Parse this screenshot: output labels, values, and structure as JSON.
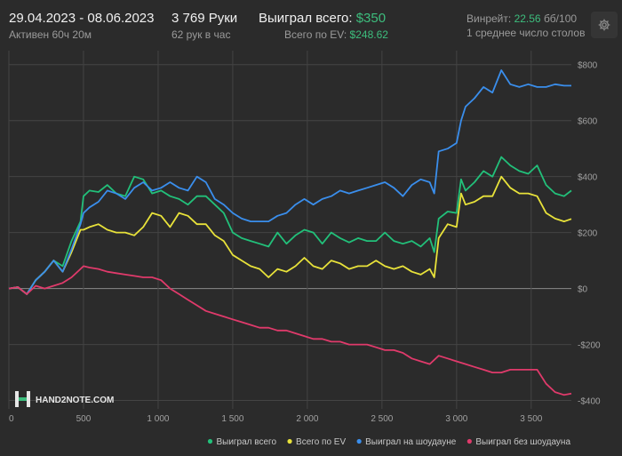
{
  "header": {
    "date_range": "29.04.2023 - 08.06.2023",
    "active": "Активен 60ч 20м",
    "hands": "3 769 Руки",
    "hands_per_hour": "62 рук в час",
    "won_total_label": "Выиграл всего:",
    "won_total_value": "$350",
    "ev_total_label": "Всего по EV:",
    "ev_total_value": "$248.62",
    "winrate_label": "Винрейт:",
    "winrate_value": "22.56",
    "winrate_unit": "бб/100",
    "tables": "1 среднее число столов"
  },
  "logo": {
    "text": "HAND2NOTE.COM"
  },
  "chart_data": {
    "type": "line",
    "xlim": [
      0,
      3769
    ],
    "ylim": [
      -430,
      850
    ],
    "x_ticks": [
      0,
      500,
      1000,
      1500,
      2000,
      2500,
      3000,
      3500
    ],
    "x_tick_labels": [
      "0",
      "500",
      "1 000",
      "1 500",
      "2 000",
      "2 500",
      "3 000",
      "3 500"
    ],
    "y_ticks": [
      800,
      600,
      400,
      200,
      0,
      -200,
      -400
    ],
    "y_tick_labels": [
      "$800",
      "$600",
      "$400",
      "$200",
      "$0",
      "-$200",
      "-$400"
    ],
    "grid": true,
    "legend_position": "bottom-right",
    "colors": {
      "background": "#2b2b2b",
      "grid": "#444444",
      "zero_line": "#8a8a8a",
      "axis_text": "#a0a0a0",
      "accent_green": "#3dbd7d"
    },
    "series": [
      {
        "name": "Выиграл всего",
        "color": "#22c07a",
        "points": [
          [
            0,
            0
          ],
          [
            60,
            5
          ],
          [
            120,
            -20
          ],
          [
            180,
            30
          ],
          [
            240,
            60
          ],
          [
            300,
            100
          ],
          [
            360,
            80
          ],
          [
            420,
            170
          ],
          [
            480,
            240
          ],
          [
            500,
            330
          ],
          [
            540,
            350
          ],
          [
            600,
            345
          ],
          [
            660,
            370
          ],
          [
            720,
            340
          ],
          [
            780,
            330
          ],
          [
            840,
            400
          ],
          [
            900,
            390
          ],
          [
            960,
            340
          ],
          [
            1020,
            350
          ],
          [
            1080,
            330
          ],
          [
            1140,
            320
          ],
          [
            1200,
            300
          ],
          [
            1260,
            330
          ],
          [
            1320,
            330
          ],
          [
            1380,
            300
          ],
          [
            1440,
            270
          ],
          [
            1500,
            200
          ],
          [
            1560,
            180
          ],
          [
            1620,
            170
          ],
          [
            1680,
            160
          ],
          [
            1740,
            150
          ],
          [
            1800,
            200
          ],
          [
            1860,
            160
          ],
          [
            1920,
            190
          ],
          [
            1980,
            210
          ],
          [
            2040,
            200
          ],
          [
            2100,
            160
          ],
          [
            2160,
            200
          ],
          [
            2220,
            180
          ],
          [
            2280,
            165
          ],
          [
            2340,
            180
          ],
          [
            2400,
            170
          ],
          [
            2460,
            170
          ],
          [
            2520,
            200
          ],
          [
            2580,
            170
          ],
          [
            2640,
            160
          ],
          [
            2700,
            170
          ],
          [
            2760,
            150
          ],
          [
            2820,
            180
          ],
          [
            2850,
            130
          ],
          [
            2880,
            250
          ],
          [
            2940,
            275
          ],
          [
            3000,
            270
          ],
          [
            3030,
            390
          ],
          [
            3060,
            350
          ],
          [
            3120,
            380
          ],
          [
            3180,
            420
          ],
          [
            3240,
            400
          ],
          [
            3300,
            470
          ],
          [
            3360,
            440
          ],
          [
            3420,
            420
          ],
          [
            3480,
            410
          ],
          [
            3540,
            440
          ],
          [
            3600,
            370
          ],
          [
            3660,
            340
          ],
          [
            3720,
            330
          ],
          [
            3769,
            350
          ]
        ]
      },
      {
        "name": "Всего по EV",
        "color": "#e8e23a",
        "points": [
          [
            0,
            0
          ],
          [
            60,
            5
          ],
          [
            120,
            -20
          ],
          [
            180,
            30
          ],
          [
            240,
            60
          ],
          [
            300,
            100
          ],
          [
            360,
            60
          ],
          [
            420,
            130
          ],
          [
            480,
            210
          ],
          [
            500,
            210
          ],
          [
            540,
            220
          ],
          [
            600,
            230
          ],
          [
            660,
            210
          ],
          [
            720,
            200
          ],
          [
            780,
            200
          ],
          [
            840,
            190
          ],
          [
            900,
            220
          ],
          [
            960,
            270
          ],
          [
            1020,
            260
          ],
          [
            1080,
            220
          ],
          [
            1140,
            270
          ],
          [
            1200,
            260
          ],
          [
            1260,
            230
          ],
          [
            1320,
            230
          ],
          [
            1380,
            190
          ],
          [
            1440,
            170
          ],
          [
            1500,
            120
          ],
          [
            1560,
            100
          ],
          [
            1620,
            80
          ],
          [
            1680,
            70
          ],
          [
            1740,
            40
          ],
          [
            1800,
            70
          ],
          [
            1860,
            60
          ],
          [
            1920,
            80
          ],
          [
            1980,
            110
          ],
          [
            2040,
            80
          ],
          [
            2100,
            70
          ],
          [
            2160,
            100
          ],
          [
            2220,
            90
          ],
          [
            2280,
            70
          ],
          [
            2340,
            80
          ],
          [
            2400,
            80
          ],
          [
            2460,
            100
          ],
          [
            2520,
            80
          ],
          [
            2580,
            70
          ],
          [
            2640,
            80
          ],
          [
            2700,
            60
          ],
          [
            2760,
            50
          ],
          [
            2820,
            70
          ],
          [
            2850,
            40
          ],
          [
            2880,
            180
          ],
          [
            2940,
            230
          ],
          [
            3000,
            220
          ],
          [
            3030,
            340
          ],
          [
            3060,
            300
          ],
          [
            3120,
            310
          ],
          [
            3180,
            330
          ],
          [
            3240,
            330
          ],
          [
            3300,
            400
          ],
          [
            3360,
            360
          ],
          [
            3420,
            340
          ],
          [
            3480,
            340
          ],
          [
            3540,
            330
          ],
          [
            3600,
            270
          ],
          [
            3660,
            250
          ],
          [
            3720,
            240
          ],
          [
            3769,
            248.62
          ]
        ]
      },
      {
        "name": "Выиграл на шоудауне",
        "color": "#3a8eec",
        "points": [
          [
            0,
            0
          ],
          [
            60,
            5
          ],
          [
            120,
            -20
          ],
          [
            180,
            30
          ],
          [
            240,
            60
          ],
          [
            300,
            100
          ],
          [
            360,
            60
          ],
          [
            420,
            140
          ],
          [
            480,
            230
          ],
          [
            500,
            270
          ],
          [
            540,
            290
          ],
          [
            600,
            310
          ],
          [
            660,
            350
          ],
          [
            720,
            340
          ],
          [
            780,
            320
          ],
          [
            840,
            360
          ],
          [
            900,
            380
          ],
          [
            960,
            350
          ],
          [
            1020,
            360
          ],
          [
            1080,
            380
          ],
          [
            1140,
            360
          ],
          [
            1200,
            350
          ],
          [
            1260,
            400
          ],
          [
            1320,
            380
          ],
          [
            1380,
            320
          ],
          [
            1440,
            300
          ],
          [
            1500,
            270
          ],
          [
            1560,
            250
          ],
          [
            1620,
            240
          ],
          [
            1680,
            240
          ],
          [
            1740,
            240
          ],
          [
            1800,
            260
          ],
          [
            1860,
            270
          ],
          [
            1920,
            300
          ],
          [
            1980,
            320
          ],
          [
            2040,
            300
          ],
          [
            2100,
            320
          ],
          [
            2160,
            330
          ],
          [
            2220,
            350
          ],
          [
            2280,
            340
          ],
          [
            2340,
            350
          ],
          [
            2400,
            360
          ],
          [
            2460,
            370
          ],
          [
            2520,
            380
          ],
          [
            2580,
            360
          ],
          [
            2640,
            330
          ],
          [
            2700,
            370
          ],
          [
            2760,
            390
          ],
          [
            2820,
            380
          ],
          [
            2850,
            340
          ],
          [
            2880,
            490
          ],
          [
            2940,
            500
          ],
          [
            3000,
            520
          ],
          [
            3030,
            600
          ],
          [
            3060,
            650
          ],
          [
            3120,
            680
          ],
          [
            3180,
            720
          ],
          [
            3240,
            700
          ],
          [
            3300,
            780
          ],
          [
            3360,
            730
          ],
          [
            3420,
            720
          ],
          [
            3480,
            730
          ],
          [
            3540,
            720
          ],
          [
            3600,
            720
          ],
          [
            3660,
            730
          ],
          [
            3720,
            725
          ],
          [
            3769,
            725
          ]
        ]
      },
      {
        "name": "Выиграл без шоудауна",
        "color": "#e03a6b",
        "points": [
          [
            0,
            0
          ],
          [
            60,
            5
          ],
          [
            120,
            -20
          ],
          [
            180,
            10
          ],
          [
            240,
            0
          ],
          [
            300,
            10
          ],
          [
            360,
            20
          ],
          [
            420,
            40
          ],
          [
            480,
            70
          ],
          [
            500,
            80
          ],
          [
            540,
            75
          ],
          [
            600,
            70
          ],
          [
            660,
            60
          ],
          [
            720,
            55
          ],
          [
            780,
            50
          ],
          [
            840,
            45
          ],
          [
            900,
            40
          ],
          [
            960,
            40
          ],
          [
            1020,
            30
          ],
          [
            1080,
            0
          ],
          [
            1140,
            -20
          ],
          [
            1200,
            -40
          ],
          [
            1260,
            -60
          ],
          [
            1320,
            -80
          ],
          [
            1380,
            -90
          ],
          [
            1440,
            -100
          ],
          [
            1500,
            -110
          ],
          [
            1560,
            -120
          ],
          [
            1620,
            -130
          ],
          [
            1680,
            -140
          ],
          [
            1740,
            -140
          ],
          [
            1800,
            -150
          ],
          [
            1860,
            -150
          ],
          [
            1920,
            -160
          ],
          [
            1980,
            -170
          ],
          [
            2040,
            -180
          ],
          [
            2100,
            -180
          ],
          [
            2160,
            -190
          ],
          [
            2220,
            -190
          ],
          [
            2280,
            -200
          ],
          [
            2340,
            -200
          ],
          [
            2400,
            -200
          ],
          [
            2460,
            -210
          ],
          [
            2520,
            -220
          ],
          [
            2580,
            -220
          ],
          [
            2640,
            -230
          ],
          [
            2700,
            -250
          ],
          [
            2760,
            -260
          ],
          [
            2820,
            -270
          ],
          [
            2880,
            -240
          ],
          [
            2940,
            -250
          ],
          [
            3000,
            -260
          ],
          [
            3060,
            -270
          ],
          [
            3120,
            -280
          ],
          [
            3180,
            -290
          ],
          [
            3240,
            -300
          ],
          [
            3300,
            -300
          ],
          [
            3360,
            -290
          ],
          [
            3420,
            -290
          ],
          [
            3480,
            -290
          ],
          [
            3540,
            -290
          ],
          [
            3600,
            -340
          ],
          [
            3660,
            -370
          ],
          [
            3720,
            -380
          ],
          [
            3769,
            -375
          ]
        ]
      }
    ]
  }
}
